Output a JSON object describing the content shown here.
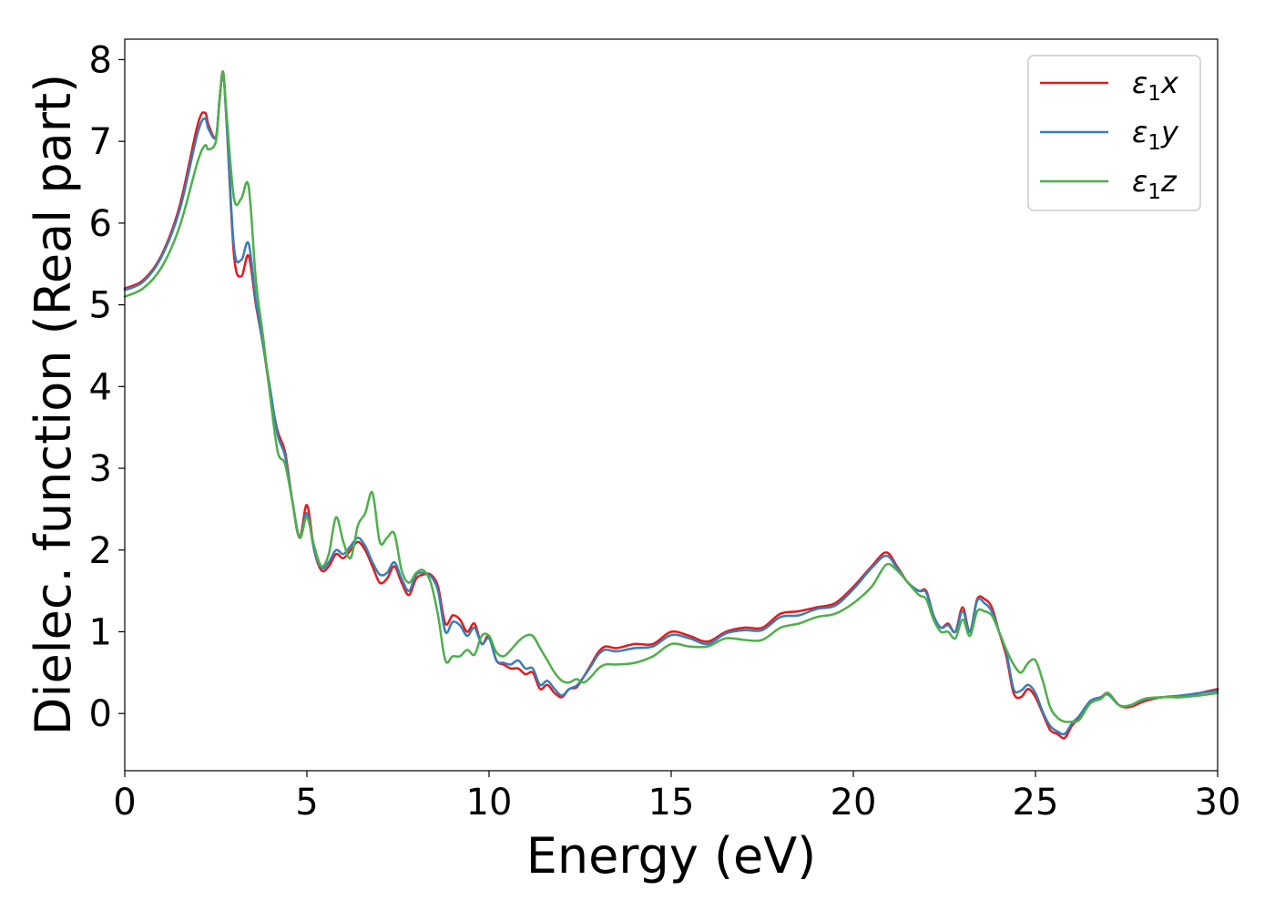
{
  "chart_data": {
    "type": "line",
    "title": "",
    "xlabel": "Energy (eV)",
    "ylabel": "Dielec. function (Real part)",
    "xlim": [
      0,
      30
    ],
    "ylim": [
      -0.7,
      8.25
    ],
    "xticks": [
      0,
      5,
      10,
      15,
      20,
      25,
      30
    ],
    "yticks": [
      0,
      1,
      2,
      3,
      4,
      5,
      6,
      7,
      8
    ],
    "grid": false,
    "legend_position": "top-right",
    "series": [
      {
        "name": "ε₁x",
        "legend_base": "ε",
        "legend_sub": "1",
        "legend_suffix": "x",
        "color": "#e41a1c",
        "x": [
          0,
          0.5,
          1,
          1.5,
          2,
          2.2,
          2.3,
          2.5,
          2.6,
          2.7,
          2.8,
          3.0,
          3.2,
          3.4,
          3.6,
          3.8,
          4.0,
          4.2,
          4.4,
          4.6,
          4.8,
          5.0,
          5.2,
          5.4,
          5.6,
          5.8,
          6.0,
          6.2,
          6.4,
          6.6,
          6.8,
          7.0,
          7.2,
          7.4,
          7.6,
          7.8,
          8.0,
          8.2,
          8.4,
          8.6,
          8.8,
          9.0,
          9.2,
          9.4,
          9.6,
          9.8,
          10.0,
          10.2,
          10.4,
          10.6,
          10.8,
          11.0,
          11.2,
          11.4,
          11.6,
          11.8,
          12.0,
          12.2,
          12.4,
          12.6,
          12.8,
          13.0,
          13.2,
          13.5,
          14.0,
          14.5,
          15.0,
          15.5,
          16.0,
          16.5,
          17.0,
          17.5,
          18.0,
          18.5,
          19.0,
          19.5,
          20.0,
          20.5,
          20.9,
          21.2,
          21.5,
          21.8,
          22.0,
          22.2,
          22.4,
          22.6,
          22.8,
          23.0,
          23.2,
          23.4,
          23.6,
          23.8,
          24.0,
          24.2,
          24.4,
          24.6,
          24.8,
          25.0,
          25.2,
          25.4,
          25.6,
          25.8,
          26.0,
          26.2,
          26.5,
          26.8,
          27.0,
          27.3,
          27.6,
          28.0,
          28.5,
          29.0,
          29.5,
          30.0
        ],
        "y": [
          5.2,
          5.3,
          5.6,
          6.2,
          7.2,
          7.35,
          7.2,
          7.05,
          7.5,
          7.85,
          7.2,
          5.6,
          5.35,
          5.6,
          5.0,
          4.5,
          3.9,
          3.45,
          3.2,
          2.6,
          2.15,
          2.55,
          2.0,
          1.75,
          1.8,
          1.95,
          1.9,
          2.0,
          2.1,
          2.0,
          1.8,
          1.6,
          1.65,
          1.8,
          1.6,
          1.45,
          1.65,
          1.7,
          1.7,
          1.55,
          1.1,
          1.2,
          1.15,
          1.0,
          1.1,
          0.85,
          0.95,
          0.65,
          0.6,
          0.55,
          0.55,
          0.48,
          0.5,
          0.3,
          0.35,
          0.25,
          0.2,
          0.3,
          0.32,
          0.45,
          0.6,
          0.75,
          0.82,
          0.8,
          0.85,
          0.85,
          1.0,
          0.95,
          0.88,
          1.0,
          1.05,
          1.05,
          1.22,
          1.25,
          1.3,
          1.35,
          1.55,
          1.8,
          1.97,
          1.8,
          1.6,
          1.5,
          1.5,
          1.2,
          1.05,
          1.1,
          1.0,
          1.3,
          1.0,
          1.4,
          1.4,
          1.3,
          1.0,
          0.7,
          0.25,
          0.2,
          0.3,
          0.2,
          0.0,
          -0.2,
          -0.25,
          -0.3,
          -0.15,
          -0.05,
          0.15,
          0.2,
          0.25,
          0.1,
          0.08,
          0.15,
          0.2,
          0.2,
          0.25,
          0.3
        ]
      },
      {
        "name": "ε₁y",
        "legend_base": "ε",
        "legend_sub": "1",
        "legend_suffix": "y",
        "color": "#377eb8",
        "x": [
          0,
          0.5,
          1,
          1.5,
          2,
          2.2,
          2.3,
          2.5,
          2.6,
          2.7,
          2.8,
          3.0,
          3.2,
          3.4,
          3.6,
          3.8,
          4.0,
          4.2,
          4.4,
          4.6,
          4.8,
          5.0,
          5.2,
          5.4,
          5.6,
          5.8,
          6.0,
          6.2,
          6.4,
          6.6,
          6.8,
          7.0,
          7.2,
          7.4,
          7.6,
          7.8,
          8.0,
          8.2,
          8.4,
          8.6,
          8.8,
          9.0,
          9.2,
          9.4,
          9.6,
          9.8,
          10.0,
          10.2,
          10.4,
          10.6,
          10.8,
          11.0,
          11.2,
          11.4,
          11.6,
          11.8,
          12.0,
          12.2,
          12.4,
          12.6,
          12.8,
          13.0,
          13.2,
          13.5,
          14.0,
          14.5,
          15.0,
          15.5,
          16.0,
          16.5,
          17.0,
          17.5,
          18.0,
          18.5,
          19.0,
          19.5,
          20.0,
          20.5,
          20.9,
          21.2,
          21.5,
          21.8,
          22.0,
          22.2,
          22.4,
          22.6,
          22.8,
          23.0,
          23.2,
          23.4,
          23.6,
          23.8,
          24.0,
          24.2,
          24.4,
          24.6,
          24.8,
          25.0,
          25.2,
          25.4,
          25.6,
          25.8,
          26.0,
          26.2,
          26.5,
          26.8,
          27.0,
          27.3,
          27.6,
          28.0,
          28.5,
          29.0,
          29.5,
          30.0
        ],
        "y": [
          5.18,
          5.28,
          5.58,
          6.15,
          7.1,
          7.28,
          7.15,
          7.05,
          7.5,
          7.83,
          7.2,
          5.7,
          5.55,
          5.75,
          5.05,
          4.5,
          3.95,
          3.4,
          3.15,
          2.6,
          2.15,
          2.45,
          2.0,
          1.78,
          1.85,
          2.0,
          1.95,
          2.05,
          2.15,
          2.05,
          1.85,
          1.7,
          1.72,
          1.85,
          1.65,
          1.5,
          1.7,
          1.72,
          1.68,
          1.5,
          1.0,
          1.12,
          1.08,
          0.95,
          1.05,
          0.85,
          0.92,
          0.65,
          0.62,
          0.6,
          0.65,
          0.55,
          0.55,
          0.35,
          0.4,
          0.3,
          0.22,
          0.3,
          0.34,
          0.45,
          0.58,
          0.72,
          0.78,
          0.76,
          0.8,
          0.82,
          0.96,
          0.92,
          0.85,
          0.98,
          1.02,
          1.02,
          1.18,
          1.2,
          1.28,
          1.32,
          1.52,
          1.78,
          1.93,
          1.78,
          1.6,
          1.5,
          1.48,
          1.2,
          1.05,
          1.08,
          1.0,
          1.25,
          1.0,
          1.38,
          1.35,
          1.25,
          1.0,
          0.75,
          0.3,
          0.28,
          0.35,
          0.25,
          0.02,
          -0.15,
          -0.22,
          -0.25,
          -0.12,
          -0.03,
          0.15,
          0.2,
          0.23,
          0.1,
          0.1,
          0.17,
          0.2,
          0.22,
          0.25,
          0.28
        ]
      },
      {
        "name": "ε₁z",
        "legend_base": "ε",
        "legend_sub": "1",
        "legend_suffix": "z",
        "color": "#4daf4a",
        "x": [
          0,
          0.5,
          1,
          1.5,
          2,
          2.2,
          2.3,
          2.5,
          2.6,
          2.7,
          2.8,
          3.0,
          3.2,
          3.4,
          3.6,
          3.8,
          4.0,
          4.2,
          4.4,
          4.6,
          4.8,
          5.0,
          5.2,
          5.4,
          5.6,
          5.8,
          6.0,
          6.2,
          6.4,
          6.6,
          6.8,
          7.0,
          7.2,
          7.4,
          7.6,
          7.8,
          8.0,
          8.2,
          8.4,
          8.6,
          8.8,
          9.0,
          9.2,
          9.4,
          9.6,
          9.8,
          10.0,
          10.2,
          10.4,
          10.6,
          10.8,
          11.0,
          11.2,
          11.4,
          11.6,
          11.8,
          12.0,
          12.2,
          12.4,
          12.6,
          12.8,
          13.0,
          13.2,
          13.5,
          14.0,
          14.5,
          15.0,
          15.5,
          16.0,
          16.5,
          17.0,
          17.5,
          18.0,
          18.5,
          19.0,
          19.5,
          20.0,
          20.5,
          20.9,
          21.2,
          21.5,
          21.8,
          22.0,
          22.2,
          22.4,
          22.6,
          22.8,
          23.0,
          23.2,
          23.4,
          23.6,
          23.8,
          24.0,
          24.2,
          24.4,
          24.6,
          24.8,
          25.0,
          25.2,
          25.4,
          25.6,
          25.8,
          26.0,
          26.2,
          26.5,
          26.8,
          27.0,
          27.3,
          27.6,
          28.0,
          28.5,
          29.0,
          29.5,
          30.0
        ],
        "y": [
          5.1,
          5.2,
          5.45,
          5.95,
          6.75,
          6.95,
          6.9,
          7.0,
          7.5,
          7.85,
          7.3,
          6.3,
          6.3,
          6.45,
          5.3,
          4.6,
          3.85,
          3.2,
          3.05,
          2.6,
          2.15,
          2.4,
          2.05,
          1.8,
          1.95,
          2.4,
          2.1,
          1.9,
          2.3,
          2.45,
          2.7,
          2.1,
          2.15,
          2.2,
          1.75,
          1.6,
          1.72,
          1.75,
          1.6,
          1.2,
          0.65,
          0.7,
          0.7,
          0.78,
          0.72,
          0.95,
          0.95,
          0.75,
          0.7,
          0.78,
          0.88,
          0.95,
          0.95,
          0.8,
          0.65,
          0.5,
          0.4,
          0.38,
          0.42,
          0.38,
          0.45,
          0.55,
          0.6,
          0.6,
          0.62,
          0.7,
          0.85,
          0.82,
          0.82,
          0.92,
          0.9,
          0.9,
          1.05,
          1.1,
          1.18,
          1.22,
          1.35,
          1.55,
          1.82,
          1.75,
          1.6,
          1.45,
          1.4,
          1.15,
          1.0,
          1.0,
          0.92,
          1.15,
          0.95,
          1.25,
          1.25,
          1.2,
          1.0,
          0.78,
          0.6,
          0.5,
          0.62,
          0.65,
          0.4,
          0.08,
          -0.05,
          -0.1,
          -0.1,
          -0.08,
          0.12,
          0.18,
          0.25,
          0.1,
          0.1,
          0.18,
          0.2,
          0.2,
          0.22,
          0.25
        ]
      }
    ]
  }
}
